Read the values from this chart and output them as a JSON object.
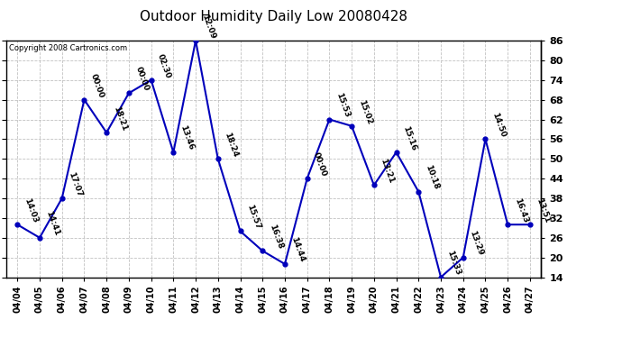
{
  "title": "Outdoor Humidity Daily Low 20080428",
  "copyright": "Copyright 2008 Cartronics.com",
  "x_labels": [
    "04/04",
    "04/05",
    "04/06",
    "04/07",
    "04/08",
    "04/09",
    "04/10",
    "04/11",
    "04/12",
    "04/13",
    "04/14",
    "04/15",
    "04/16",
    "04/17",
    "04/18",
    "04/19",
    "04/20",
    "04/21",
    "04/22",
    "04/23",
    "04/24",
    "04/25",
    "04/26",
    "04/27"
  ],
  "y_values": [
    30,
    26,
    38,
    68,
    58,
    70,
    74,
    52,
    86,
    50,
    28,
    22,
    18,
    44,
    62,
    60,
    42,
    52,
    40,
    14,
    20,
    56,
    30,
    30
  ],
  "point_labels": [
    "14:03",
    "14:41",
    "17:07",
    "00:00",
    "18:21",
    "00:00",
    "02:30",
    "13:46",
    "12:09",
    "18:24",
    "15:57",
    "16:38",
    "14:44",
    "00:00",
    "15:53",
    "15:02",
    "13:21",
    "15:16",
    "10:18",
    "15:33",
    "13:29",
    "14:50",
    "16:43",
    "13:51"
  ],
  "line_color": "#0000bb",
  "marker_color": "#0000bb",
  "background_color": "#ffffff",
  "grid_color": "#bbbbbb",
  "y_min": 14,
  "y_max": 86,
  "y_ticks": [
    14,
    20,
    26,
    32,
    38,
    44,
    50,
    56,
    62,
    68,
    74,
    80,
    86
  ],
  "title_fontsize": 11,
  "label_fontsize": 7,
  "point_label_fontsize": 6.5
}
